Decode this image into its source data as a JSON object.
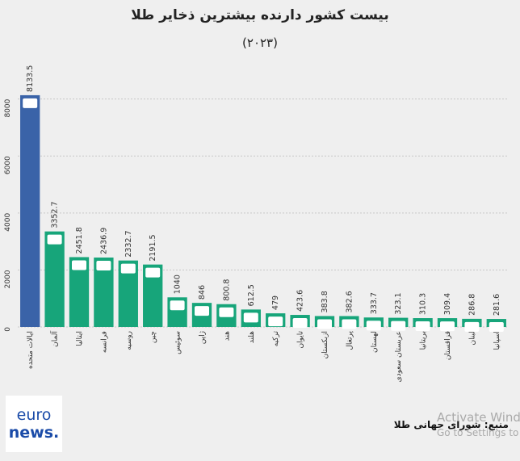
{
  "chart_data": {
    "type": "bar",
    "title": "بیست کشور دارنده بیشترین ذخایر طلا",
    "subtitle": "(۲۰۲۳)",
    "categories": [
      "ایالات متحده",
      "آلمان",
      "ایتالیا",
      "فرانسه",
      "روسیه",
      "چین",
      "سوئیس",
      "ژاپن",
      "هند",
      "هلند",
      "ترکیه",
      "تایوان",
      "ازبکستان",
      "پرتغال",
      "لهستان",
      "عربستان سعودی",
      "بریتانیا",
      "قزاقستان",
      "لبنان",
      "اسپانیا"
    ],
    "values": [
      8133.5,
      3352.7,
      2451.8,
      2436.9,
      2332.7,
      2191.5,
      1040,
      846,
      800.8,
      612.5,
      479,
      423.6,
      383.8,
      382.6,
      333.7,
      323.1,
      310.3,
      309.4,
      286.8,
      281.6
    ],
    "colors": [
      "#3a63a8",
      "#17a57a",
      "#17a57a",
      "#17a57a",
      "#17a57a",
      "#17a57a",
      "#17a57a",
      "#17a57a",
      "#17a57a",
      "#17a57a",
      "#17a57a",
      "#17a57a",
      "#17a57a",
      "#17a57a",
      "#17a57a",
      "#17a57a",
      "#17a57a",
      "#17a57a",
      "#17a57a",
      "#17a57a"
    ],
    "ylim": [
      0,
      8500
    ],
    "yticks": [
      0,
      2000,
      4000,
      6000,
      8000
    ],
    "grid": true,
    "source": "منبع: شورای جهانی طلا",
    "logo": [
      "euro",
      "news."
    ],
    "watermark": [
      "Activate Windows",
      "Go to Settings to activate Windows."
    ]
  }
}
